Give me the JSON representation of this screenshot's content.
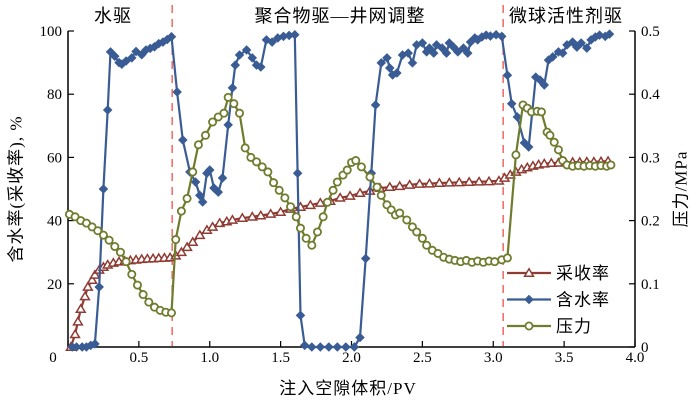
{
  "chart_data": {
    "type": "line",
    "xlabel": "注入空隙体积/PV",
    "ylabel_left": "含水率(采收率), %",
    "ylabel_right": "压力/MPa",
    "xlim": [
      0,
      4.0
    ],
    "ylim_left": [
      0,
      100
    ],
    "ylim_right": [
      0,
      0.5
    ],
    "xticks": {
      "values": [
        0,
        0.5,
        1.0,
        1.5,
        2.0,
        2.5,
        3.0,
        3.5,
        4.0
      ],
      "labels": [
        "0",
        "0.5",
        "1.0",
        "1.5",
        "2.0",
        "2.5",
        "3.0",
        "3.5",
        "4.0"
      ]
    },
    "yticks_left": {
      "values": [
        0,
        20,
        40,
        60,
        80,
        100
      ],
      "labels": [
        "0",
        "20",
        "40",
        "60",
        "80",
        "100"
      ]
    },
    "yticks_right": {
      "values": [
        0,
        0.1,
        0.2,
        0.3,
        0.4,
        0.5
      ],
      "labels": [
        "0",
        "0.1",
        "0.2",
        "0.3",
        "0.4",
        "0.5"
      ]
    },
    "region_annotations": [
      {
        "label": "水驱",
        "x_center_pv": 0.32
      },
      {
        "label": "聚合物驱—井网调整",
        "x_center_pv": 1.92
      },
      {
        "label": "微球活性剂驱",
        "x_center_pv": 3.5
      }
    ],
    "phase_boundaries_pv": [
      0.735,
      3.07
    ],
    "phase_boundary_color": "#ef7268",
    "legend_entries": [
      "采收率",
      "含水率",
      "压力"
    ],
    "legend_position": "right-middle-inside",
    "grid": false,
    "series": [
      {
        "name": "采收率",
        "axis": "left",
        "color": "#8e3b33",
        "marker": "triangle-open",
        "points": [
          [
            0.02,
            0
          ],
          [
            0.05,
            4
          ],
          [
            0.07,
            8
          ],
          [
            0.09,
            12
          ],
          [
            0.12,
            16
          ],
          [
            0.14,
            19
          ],
          [
            0.17,
            21.2
          ],
          [
            0.19,
            22.8
          ],
          [
            0.22,
            24.4
          ],
          [
            0.25,
            25.3
          ],
          [
            0.28,
            26
          ],
          [
            0.32,
            26.6
          ],
          [
            0.36,
            27
          ],
          [
            0.4,
            27.2
          ],
          [
            0.44,
            27.4
          ],
          [
            0.48,
            27.6
          ],
          [
            0.52,
            27.8
          ],
          [
            0.56,
            27.9
          ],
          [
            0.6,
            28
          ],
          [
            0.64,
            28.1
          ],
          [
            0.68,
            28.2
          ],
          [
            0.72,
            28.3
          ],
          [
            0.76,
            28.9
          ],
          [
            0.8,
            30
          ],
          [
            0.84,
            31.6
          ],
          [
            0.88,
            33.2
          ],
          [
            0.93,
            35.4
          ],
          [
            0.98,
            37
          ],
          [
            1.02,
            38
          ],
          [
            1.07,
            39.2
          ],
          [
            1.12,
            39.7
          ],
          [
            1.16,
            40.2
          ],
          [
            1.23,
            40.8
          ],
          [
            1.3,
            41.2
          ],
          [
            1.36,
            41.6
          ],
          [
            1.43,
            42.1
          ],
          [
            1.5,
            42.7
          ],
          [
            1.57,
            43.7
          ],
          [
            1.64,
            44.3
          ],
          [
            1.71,
            44.9
          ],
          [
            1.78,
            45.6
          ],
          [
            1.85,
            46.2
          ],
          [
            1.92,
            47.2
          ],
          [
            1.99,
            47.8
          ],
          [
            2.06,
            48.7
          ],
          [
            2.13,
            49.4
          ],
          [
            2.2,
            50.3
          ],
          [
            2.27,
            50.6
          ],
          [
            2.34,
            50.9
          ],
          [
            2.41,
            51.3
          ],
          [
            2.48,
            51.6
          ],
          [
            2.55,
            51.7
          ],
          [
            2.62,
            51.9
          ],
          [
            2.69,
            52
          ],
          [
            2.76,
            52.1
          ],
          [
            2.83,
            52.2
          ],
          [
            2.9,
            52.3
          ],
          [
            2.97,
            52.4
          ],
          [
            3.04,
            52.6
          ],
          [
            3.08,
            53.5
          ],
          [
            3.12,
            54.5
          ],
          [
            3.16,
            55.4
          ],
          [
            3.2,
            56.2
          ],
          [
            3.24,
            56.8
          ],
          [
            3.28,
            57.3
          ],
          [
            3.32,
            57.7
          ],
          [
            3.36,
            58
          ],
          [
            3.41,
            58.2
          ],
          [
            3.46,
            58.3
          ],
          [
            3.51,
            58.4
          ],
          [
            3.56,
            58.5
          ],
          [
            3.61,
            58.5
          ],
          [
            3.66,
            58.6
          ],
          [
            3.71,
            58.6
          ],
          [
            3.76,
            58.7
          ],
          [
            3.81,
            58.8
          ]
        ]
      },
      {
        "name": "含水率",
        "axis": "left",
        "color": "#3a5c94",
        "marker": "diamond",
        "points": [
          [
            0.03,
            0
          ],
          [
            0.06,
            0
          ],
          [
            0.1,
            0
          ],
          [
            0.13,
            0
          ],
          [
            0.16,
            0.5
          ],
          [
            0.19,
            1
          ],
          [
            0.22,
            19
          ],
          [
            0.25,
            50
          ],
          [
            0.28,
            75
          ],
          [
            0.3,
            93.4
          ],
          [
            0.33,
            92
          ],
          [
            0.36,
            90
          ],
          [
            0.38,
            89.5
          ],
          [
            0.41,
            90.5
          ],
          [
            0.45,
            91.5
          ],
          [
            0.48,
            93.5
          ],
          [
            0.52,
            92.5
          ],
          [
            0.55,
            94
          ],
          [
            0.58,
            94.5
          ],
          [
            0.61,
            95
          ],
          [
            0.64,
            96
          ],
          [
            0.67,
            96.5
          ],
          [
            0.7,
            97.3
          ],
          [
            0.73,
            98.2
          ],
          [
            0.77,
            80.7
          ],
          [
            0.81,
            65.5
          ],
          [
            0.86,
            55.4
          ],
          [
            0.9,
            52.2
          ],
          [
            0.93,
            48
          ],
          [
            0.95,
            45.9
          ],
          [
            0.98,
            55
          ],
          [
            1.0,
            56
          ],
          [
            1.03,
            50.3
          ],
          [
            1.06,
            49
          ],
          [
            1.09,
            53.5
          ],
          [
            1.13,
            70.3
          ],
          [
            1.16,
            82
          ],
          [
            1.18,
            89.2
          ],
          [
            1.21,
            92.4
          ],
          [
            1.26,
            94
          ],
          [
            1.3,
            91.5
          ],
          [
            1.33,
            89.2
          ],
          [
            1.36,
            88.6
          ],
          [
            1.4,
            97.2
          ],
          [
            1.44,
            96.5
          ],
          [
            1.48,
            97.8
          ],
          [
            1.52,
            98.3
          ],
          [
            1.56,
            98.6
          ],
          [
            1.6,
            98.8
          ],
          [
            1.62,
            55
          ],
          [
            1.64,
            10
          ],
          [
            1.67,
            0.5
          ],
          [
            1.72,
            0
          ],
          [
            1.78,
            0
          ],
          [
            1.84,
            0
          ],
          [
            1.9,
            0
          ],
          [
            1.96,
            0
          ],
          [
            2.02,
            0
          ],
          [
            2.06,
            3
          ],
          [
            2.1,
            28
          ],
          [
            2.14,
            55
          ],
          [
            2.17,
            76.6
          ],
          [
            2.21,
            89.9
          ],
          [
            2.25,
            91.5
          ],
          [
            2.27,
            88.3
          ],
          [
            2.29,
            86.1
          ],
          [
            2.32,
            86.7
          ],
          [
            2.36,
            92.4
          ],
          [
            2.4,
            93
          ],
          [
            2.43,
            89.9
          ],
          [
            2.46,
            95.6
          ],
          [
            2.5,
            96.2
          ],
          [
            2.53,
            93.4
          ],
          [
            2.55,
            94.6
          ],
          [
            2.58,
            93
          ],
          [
            2.6,
            95.6
          ],
          [
            2.64,
            94.6
          ],
          [
            2.67,
            93
          ],
          [
            2.69,
            96.2
          ],
          [
            2.72,
            94.9
          ],
          [
            2.75,
            93.4
          ],
          [
            2.79,
            94.6
          ],
          [
            2.82,
            93
          ],
          [
            2.84,
            96.5
          ],
          [
            2.87,
            97.8
          ],
          [
            2.89,
            97.2
          ],
          [
            2.92,
            98.1
          ],
          [
            2.95,
            98.7
          ],
          [
            2.98,
            98.4
          ],
          [
            3.02,
            98.8
          ],
          [
            3.06,
            98.3
          ],
          [
            3.1,
            86
          ],
          [
            3.13,
            77
          ],
          [
            3.17,
            72.8
          ],
          [
            3.22,
            64.6
          ],
          [
            3.25,
            63.3
          ],
          [
            3.3,
            85.4
          ],
          [
            3.33,
            84.5
          ],
          [
            3.36,
            82.9
          ],
          [
            3.39,
            90.8
          ],
          [
            3.42,
            91.8
          ],
          [
            3.46,
            93.4
          ],
          [
            3.49,
            93
          ],
          [
            3.52,
            95.6
          ],
          [
            3.56,
            96.5
          ],
          [
            3.59,
            94.9
          ],
          [
            3.62,
            96.2
          ],
          [
            3.66,
            94.6
          ],
          [
            3.69,
            97.2
          ],
          [
            3.72,
            98.1
          ],
          [
            3.75,
            98.7
          ],
          [
            3.79,
            98.3
          ],
          [
            3.82,
            99
          ]
        ]
      },
      {
        "name": "压力",
        "axis": "right",
        "color": "#6f7c2e",
        "marker": "circle-open",
        "points": [
          [
            0.01,
            0.21
          ],
          [
            0.05,
            0.206
          ],
          [
            0.09,
            0.2
          ],
          [
            0.13,
            0.196
          ],
          [
            0.17,
            0.19
          ],
          [
            0.21,
            0.184
          ],
          [
            0.25,
            0.177
          ],
          [
            0.29,
            0.169
          ],
          [
            0.33,
            0.159
          ],
          [
            0.37,
            0.15
          ],
          [
            0.41,
            0.135
          ],
          [
            0.45,
            0.115
          ],
          [
            0.49,
            0.098
          ],
          [
            0.53,
            0.083
          ],
          [
            0.57,
            0.071
          ],
          [
            0.61,
            0.063
          ],
          [
            0.65,
            0.058
          ],
          [
            0.69,
            0.055
          ],
          [
            0.73,
            0.054
          ],
          [
            0.76,
            0.17
          ],
          [
            0.8,
            0.215
          ],
          [
            0.84,
            0.235
          ],
          [
            0.88,
            0.277
          ],
          [
            0.92,
            0.32
          ],
          [
            0.97,
            0.335
          ],
          [
            1.02,
            0.356
          ],
          [
            1.06,
            0.364
          ],
          [
            1.1,
            0.37
          ],
          [
            1.13,
            0.395
          ],
          [
            1.17,
            0.385
          ],
          [
            1.21,
            0.37
          ],
          [
            1.25,
            0.315
          ],
          [
            1.29,
            0.3
          ],
          [
            1.33,
            0.293
          ],
          [
            1.37,
            0.285
          ],
          [
            1.41,
            0.277
          ],
          [
            1.45,
            0.26
          ],
          [
            1.49,
            0.248
          ],
          [
            1.53,
            0.236
          ],
          [
            1.57,
            0.222
          ],
          [
            1.61,
            0.206
          ],
          [
            1.64,
            0.188
          ],
          [
            1.68,
            0.172
          ],
          [
            1.72,
            0.161
          ],
          [
            1.76,
            0.182
          ],
          [
            1.8,
            0.206
          ],
          [
            1.83,
            0.229
          ],
          [
            1.87,
            0.248
          ],
          [
            1.9,
            0.261
          ],
          [
            1.94,
            0.272
          ],
          [
            1.97,
            0.28
          ],
          [
            2.0,
            0.292
          ],
          [
            2.03,
            0.295
          ],
          [
            2.07,
            0.285
          ],
          [
            2.13,
            0.269
          ],
          [
            2.18,
            0.253
          ],
          [
            2.21,
            0.24
          ],
          [
            2.25,
            0.225
          ],
          [
            2.28,
            0.217
          ],
          [
            2.31,
            0.209
          ],
          [
            2.34,
            0.212
          ],
          [
            2.39,
            0.201
          ],
          [
            2.43,
            0.19
          ],
          [
            2.46,
            0.182
          ],
          [
            2.5,
            0.172
          ],
          [
            2.53,
            0.161
          ],
          [
            2.57,
            0.153
          ],
          [
            2.61,
            0.148
          ],
          [
            2.65,
            0.142
          ],
          [
            2.69,
            0.139
          ],
          [
            2.73,
            0.137
          ],
          [
            2.77,
            0.135
          ],
          [
            2.81,
            0.137
          ],
          [
            2.85,
            0.134
          ],
          [
            2.89,
            0.136
          ],
          [
            2.93,
            0.134
          ],
          [
            2.97,
            0.136
          ],
          [
            3.01,
            0.135
          ],
          [
            3.06,
            0.138
          ],
          [
            3.1,
            0.141
          ],
          [
            3.16,
            0.304
          ],
          [
            3.21,
            0.383
          ],
          [
            3.24,
            0.378
          ],
          [
            3.27,
            0.372
          ],
          [
            3.31,
            0.373
          ],
          [
            3.34,
            0.372
          ],
          [
            3.38,
            0.34
          ],
          [
            3.4,
            0.335
          ],
          [
            3.43,
            0.324
          ],
          [
            3.46,
            0.312
          ],
          [
            3.49,
            0.295
          ],
          [
            3.52,
            0.288
          ],
          [
            3.56,
            0.286
          ],
          [
            3.6,
            0.287
          ],
          [
            3.64,
            0.286
          ],
          [
            3.68,
            0.287
          ],
          [
            3.72,
            0.286
          ],
          [
            3.76,
            0.287
          ],
          [
            3.8,
            0.286
          ],
          [
            3.83,
            0.288
          ]
        ]
      }
    ]
  }
}
